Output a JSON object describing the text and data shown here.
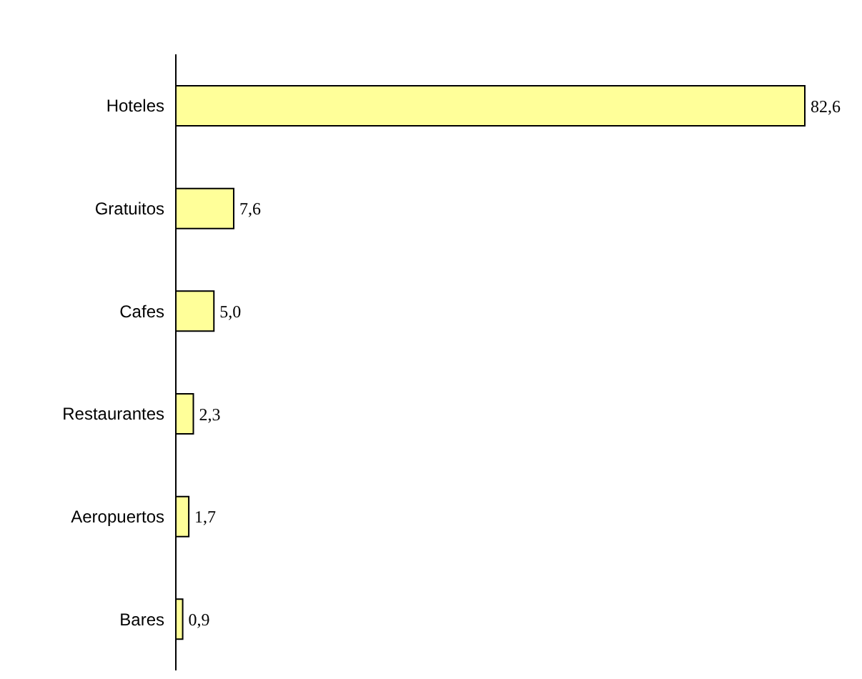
{
  "chart_data": {
    "type": "bar",
    "orientation": "horizontal",
    "categories": [
      "Hoteles",
      "Gratuitos",
      "Cafes",
      "Restaurantes",
      "Aeropuertos",
      "Bares"
    ],
    "values": [
      82.6,
      7.6,
      5.0,
      2.3,
      1.7,
      0.9
    ],
    "value_labels": [
      "82,6",
      "7,6",
      "5,0",
      "2,3",
      "1,7",
      "0,9"
    ],
    "color": "#ffff99",
    "grid": false,
    "legend": false
  }
}
